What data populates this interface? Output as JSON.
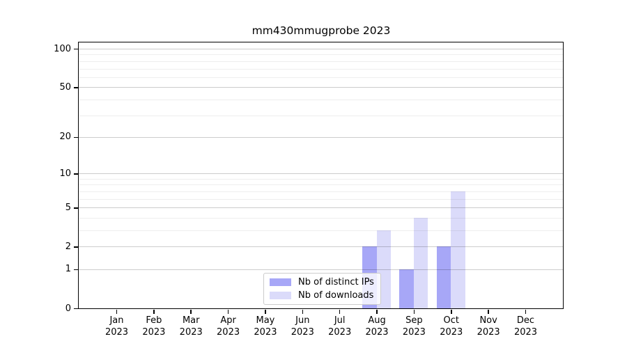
{
  "chart_data": {
    "type": "bar",
    "title": "mm430mmugprobe 2023",
    "year": "2023",
    "categories": [
      "Jan",
      "Feb",
      "Mar",
      "Apr",
      "May",
      "Jun",
      "Jul",
      "Aug",
      "Sep",
      "Oct",
      "Nov",
      "Dec"
    ],
    "series": [
      {
        "name": "Nb of distinct IPs",
        "color": "#a7a7f7",
        "values": [
          0,
          0,
          0,
          0,
          0,
          0,
          0,
          2,
          1,
          2,
          0,
          0
        ]
      },
      {
        "name": "Nb of downloads",
        "color": "#dbdbfa",
        "values": [
          0,
          0,
          0,
          0,
          0,
          0,
          0,
          3,
          4,
          7,
          0,
          0
        ]
      }
    ],
    "yticks": [
      0,
      1,
      2,
      5,
      10,
      20,
      50,
      100
    ],
    "yticks_minor": [
      3,
      4,
      6,
      7,
      8,
      9,
      30,
      40,
      60,
      70,
      80,
      90
    ],
    "scale": "log10(1+x)",
    "ylim": [
      0,
      112
    ],
    "grid": true,
    "legend_position": "lower center",
    "axis_color": "#000000",
    "background_color": "#ffffff"
  }
}
